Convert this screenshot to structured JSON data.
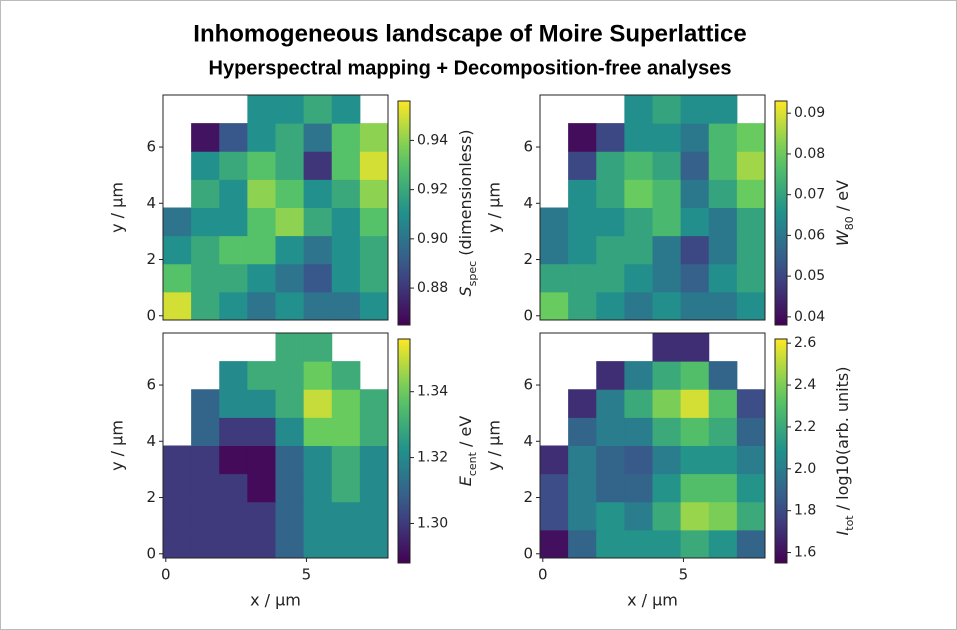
{
  "header": {
    "title": "Inhomogeneous landscape of Moire Superlattice",
    "subtitle": "Hyperspectral mapping + Decomposition-free analyses"
  },
  "chart_data": [
    {
      "type": "heatmap",
      "colormap": "viridis",
      "ylabel": "y / µm",
      "xlim": [
        -0.1,
        7.9
      ],
      "ylim": [
        -0.15,
        7.85
      ],
      "yticks": [
        0,
        2,
        4,
        6
      ],
      "x": [
        0.4,
        1.4,
        2.4,
        3.4,
        4.4,
        5.4,
        6.4,
        7.4
      ],
      "y": [
        0.35,
        1.35,
        2.35,
        3.35,
        4.35,
        5.35,
        6.35,
        7.35
      ],
      "z": [
        [
          0.95,
          0.92,
          0.91,
          0.9,
          0.91,
          0.9,
          0.9,
          0.91
        ],
        [
          0.93,
          0.92,
          0.92,
          0.91,
          0.9,
          0.89,
          0.91,
          0.92
        ],
        [
          0.91,
          0.92,
          0.93,
          0.93,
          0.91,
          0.9,
          0.91,
          0.92
        ],
        [
          0.9,
          0.91,
          0.91,
          0.93,
          0.94,
          0.92,
          0.91,
          0.93
        ],
        [
          null,
          0.92,
          0.91,
          0.94,
          0.93,
          0.91,
          0.92,
          0.94
        ],
        [
          null,
          0.91,
          0.92,
          0.93,
          0.92,
          0.88,
          0.93,
          0.95
        ],
        [
          null,
          0.87,
          0.89,
          0.91,
          0.92,
          0.9,
          0.93,
          0.94
        ],
        [
          null,
          null,
          null,
          0.91,
          0.91,
          0.92,
          0.91,
          null
        ]
      ],
      "clim": [
        0.865,
        0.956
      ],
      "cticks": [
        0.88,
        {
          "value": 0.9,
          "label": "0.90"
        },
        0.92,
        0.94
      ],
      "clabel": {
        "main": "S",
        "sub": "spec",
        "rest": " (dimensionless)"
      }
    },
    {
      "type": "heatmap",
      "colormap": "viridis",
      "ylabel": "y / µm",
      "xlim": [
        -0.1,
        7.9
      ],
      "ylim": [
        -0.15,
        7.85
      ],
      "yticks": [
        0,
        2,
        4,
        6
      ],
      "x": [
        0.4,
        1.4,
        2.4,
        3.4,
        4.4,
        5.4,
        6.4,
        7.4
      ],
      "y": [
        0.35,
        1.35,
        2.35,
        3.35,
        4.35,
        5.35,
        6.35,
        7.35
      ],
      "z": [
        [
          0.08,
          0.07,
          0.065,
          0.06,
          0.065,
          0.06,
          0.06,
          0.065
        ],
        [
          0.07,
          0.07,
          0.07,
          0.065,
          0.06,
          0.055,
          0.065,
          0.07
        ],
        [
          0.06,
          0.065,
          0.07,
          0.07,
          0.06,
          0.05,
          0.06,
          0.07
        ],
        [
          0.06,
          0.065,
          0.065,
          0.07,
          0.075,
          0.065,
          0.06,
          0.07
        ],
        [
          null,
          0.065,
          0.07,
          0.08,
          0.075,
          0.06,
          0.07,
          0.08
        ],
        [
          null,
          0.05,
          0.07,
          0.075,
          0.07,
          0.055,
          0.075,
          0.085
        ],
        [
          null,
          0.04,
          0.05,
          0.065,
          0.065,
          0.06,
          0.075,
          0.08
        ],
        [
          null,
          null,
          null,
          0.065,
          0.07,
          0.065,
          0.065,
          null
        ]
      ],
      "clim": [
        0.038,
        0.093
      ],
      "cticks": [
        0.04,
        0.05,
        0.06,
        0.07,
        0.08,
        0.09
      ],
      "clabel": {
        "main": "W",
        "sub": "80",
        "rest": " / eV"
      }
    },
    {
      "type": "heatmap",
      "colormap": "viridis",
      "ylabel": "y / µm",
      "xlabel": "x / µm",
      "xlim": [
        -0.1,
        7.9
      ],
      "ylim": [
        -0.15,
        7.85
      ],
      "xticks": [
        0,
        5
      ],
      "yticks": [
        0,
        2,
        4,
        6
      ],
      "x": [
        0.4,
        1.4,
        2.4,
        3.4,
        4.4,
        5.4,
        6.4,
        7.4
      ],
      "y": [
        0.35,
        1.35,
        2.35,
        3.35,
        4.35,
        5.35,
        6.35,
        7.35
      ],
      "z": [
        [
          1.3,
          1.3,
          1.3,
          1.3,
          1.31,
          1.32,
          1.32,
          1.32
        ],
        [
          1.3,
          1.3,
          1.3,
          1.3,
          1.31,
          1.32,
          1.32,
          1.32
        ],
        [
          1.3,
          1.3,
          1.3,
          1.29,
          1.31,
          1.32,
          1.33,
          1.32
        ],
        [
          1.3,
          1.3,
          1.29,
          1.29,
          1.31,
          1.32,
          1.33,
          1.32
        ],
        [
          null,
          1.31,
          1.3,
          1.3,
          1.32,
          1.34,
          1.34,
          1.33
        ],
        [
          null,
          1.31,
          1.32,
          1.32,
          1.33,
          1.35,
          1.34,
          1.33
        ],
        [
          null,
          null,
          1.32,
          1.33,
          1.33,
          1.34,
          1.33,
          null
        ],
        [
          null,
          null,
          null,
          null,
          1.33,
          1.33,
          null,
          null
        ]
      ],
      "clim": [
        1.288,
        1.356
      ],
      "cticks": [
        {
          "value": 1.3,
          "label": "1.30"
        },
        1.32,
        1.34
      ],
      "clabel": {
        "main": "E",
        "sub": "cent",
        "rest": " / eV"
      }
    },
    {
      "type": "heatmap",
      "colormap": "viridis",
      "ylabel": "y / µm",
      "xlabel": "x / µm",
      "xlim": [
        -0.1,
        7.9
      ],
      "ylim": [
        -0.15,
        7.85
      ],
      "xticks": [
        0,
        5
      ],
      "yticks": [
        0,
        2,
        4,
        6
      ],
      "x": [
        0.4,
        1.4,
        2.4,
        3.4,
        4.4,
        5.4,
        6.4,
        7.4
      ],
      "y": [
        0.35,
        1.35,
        2.35,
        3.35,
        4.35,
        5.35,
        6.35,
        7.35
      ],
      "z": [
        [
          1.6,
          1.9,
          2.1,
          2.1,
          2.1,
          2.2,
          2.1,
          1.9
        ],
        [
          1.8,
          2.0,
          2.1,
          2.0,
          2.2,
          2.45,
          2.4,
          2.2
        ],
        [
          1.8,
          2.0,
          1.9,
          1.9,
          2.1,
          2.3,
          2.3,
          2.1
        ],
        [
          1.7,
          2.0,
          1.9,
          1.85,
          2.0,
          2.1,
          2.1,
          2.0
        ],
        [
          null,
          1.9,
          2.0,
          2.0,
          2.2,
          2.3,
          2.2,
          1.9
        ],
        [
          null,
          1.7,
          2.0,
          2.2,
          2.4,
          2.55,
          2.3,
          1.8
        ],
        [
          null,
          null,
          1.7,
          2.0,
          2.2,
          2.3,
          1.9,
          null
        ],
        [
          null,
          null,
          null,
          null,
          1.7,
          1.7,
          null,
          null
        ]
      ],
      "clim": [
        1.55,
        2.62
      ],
      "cticks": [
        1.6,
        1.8,
        {
          "value": 2,
          "label": "2.0"
        },
        2.2,
        2.4,
        2.6
      ],
      "clabel": {
        "main": "I",
        "sub": "tot",
        "rest": " / log10(arb. units)"
      }
    }
  ]
}
